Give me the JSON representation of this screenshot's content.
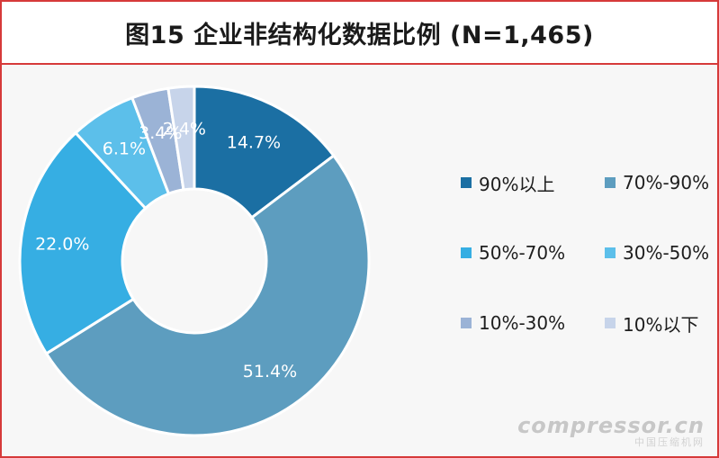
{
  "chart_data": {
    "type": "pie",
    "style": "donut",
    "title": "图15 企业非结构化数据比例 (N=1,465)",
    "categories": [
      "90%以上",
      "70%-90%",
      "50%-70%",
      "30%-50%",
      "10%-30%",
      "10%以下"
    ],
    "values": [
      14.7,
      51.4,
      22.0,
      6.1,
      3.4,
      2.4
    ],
    "labels": [
      "14.7%",
      "51.4%",
      "22.0%",
      "6.1%",
      "3.4%",
      "2.4%"
    ],
    "colors": [
      "#1b6fa3",
      "#5d9dbf",
      "#36aee3",
      "#5cbfea",
      "#9bb3d6",
      "#c7d4ea"
    ],
    "legend_position": "right"
  },
  "watermark": {
    "text": "compressor.cn",
    "subtext": "中国压缩机网"
  }
}
